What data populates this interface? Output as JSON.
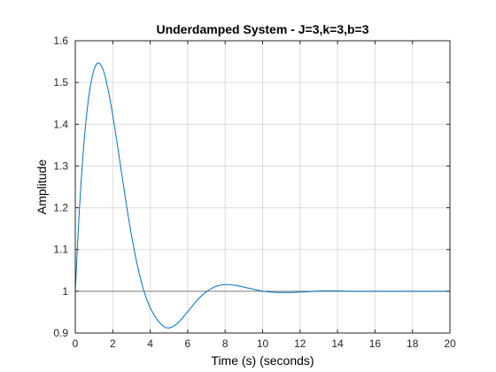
{
  "chart_data": {
    "type": "line",
    "title": "Underdamped System - J=3,k=3,b=3",
    "xlabel": "Time (s) (seconds)",
    "ylabel": "Amplitude",
    "xlim": [
      0,
      20
    ],
    "ylim": [
      0.9,
      1.6
    ],
    "xticks": [
      0,
      2,
      4,
      6,
      8,
      10,
      12,
      14,
      16,
      18,
      20
    ],
    "xtick_labels": [
      "0",
      "2",
      "4",
      "6",
      "8",
      "10",
      "12",
      "14",
      "16",
      "18",
      "20"
    ],
    "yticks": [
      0.9,
      1.0,
      1.1,
      1.2,
      1.3,
      1.4,
      1.5,
      1.6
    ],
    "ytick_labels": [
      "0.9",
      "1",
      "1.1",
      "1.2",
      "1.3",
      "1.4",
      "1.5",
      "1.6"
    ],
    "grid": true,
    "reference_line": {
      "y": 1.0,
      "color": "#808080"
    },
    "series": [
      {
        "color": "#0072BD",
        "x": [
          0,
          0.1,
          0.2,
          0.3,
          0.4,
          0.5,
          0.6,
          0.7,
          0.8,
          0.9,
          1.0,
          1.1,
          1.2,
          1.3,
          1.4,
          1.5,
          1.6,
          1.8,
          2.0,
          2.2,
          2.4,
          2.6,
          2.8,
          3.0,
          3.2,
          3.4,
          3.6,
          3.8,
          4.0,
          4.2,
          4.4,
          4.6,
          4.8,
          5.0,
          5.2,
          5.4,
          5.6,
          5.8,
          6.0,
          6.2,
          6.4,
          6.6,
          6.8,
          7.0,
          7.2,
          7.4,
          7.6,
          7.8,
          8.0,
          8.2,
          8.4,
          8.6,
          8.8,
          9.0,
          9.2,
          9.4,
          9.6,
          9.8,
          10.0,
          10.4,
          10.8,
          11.2,
          11.6,
          12.0,
          12.4,
          12.8,
          13.2,
          13.6,
          14.0,
          14.5,
          15.0,
          15.5,
          16.0,
          16.5,
          17.0,
          17.5,
          18.0,
          18.5,
          19.0,
          19.5,
          20.0
        ],
        "y": [
          1.0,
          1.095,
          1.18,
          1.255,
          1.32,
          1.375,
          1.421,
          1.459,
          1.49,
          1.514,
          1.531,
          1.542,
          1.547,
          1.546,
          1.54,
          1.529,
          1.514,
          1.473,
          1.422,
          1.365,
          1.305,
          1.245,
          1.187,
          1.134,
          1.086,
          1.045,
          1.01,
          0.982,
          0.96,
          0.944,
          0.93,
          0.92,
          0.913,
          0.912,
          0.915,
          0.921,
          0.93,
          0.94,
          0.951,
          0.962,
          0.973,
          0.983,
          0.992,
          0.999,
          1.005,
          1.01,
          1.013,
          1.015,
          1.016,
          1.016,
          1.015,
          1.014,
          1.012,
          1.01,
          1.008,
          1.006,
          1.004,
          1.002,
          1.0,
          0.998,
          0.997,
          0.997,
          0.997,
          0.998,
          0.999,
          1.0,
          1.001,
          1.001,
          1.001,
          1.0,
          1.0,
          1.0,
          1.0,
          1.0,
          1.0,
          1.0,
          1.0,
          1.0,
          1.0,
          1.0,
          1.0
        ]
      }
    ]
  }
}
